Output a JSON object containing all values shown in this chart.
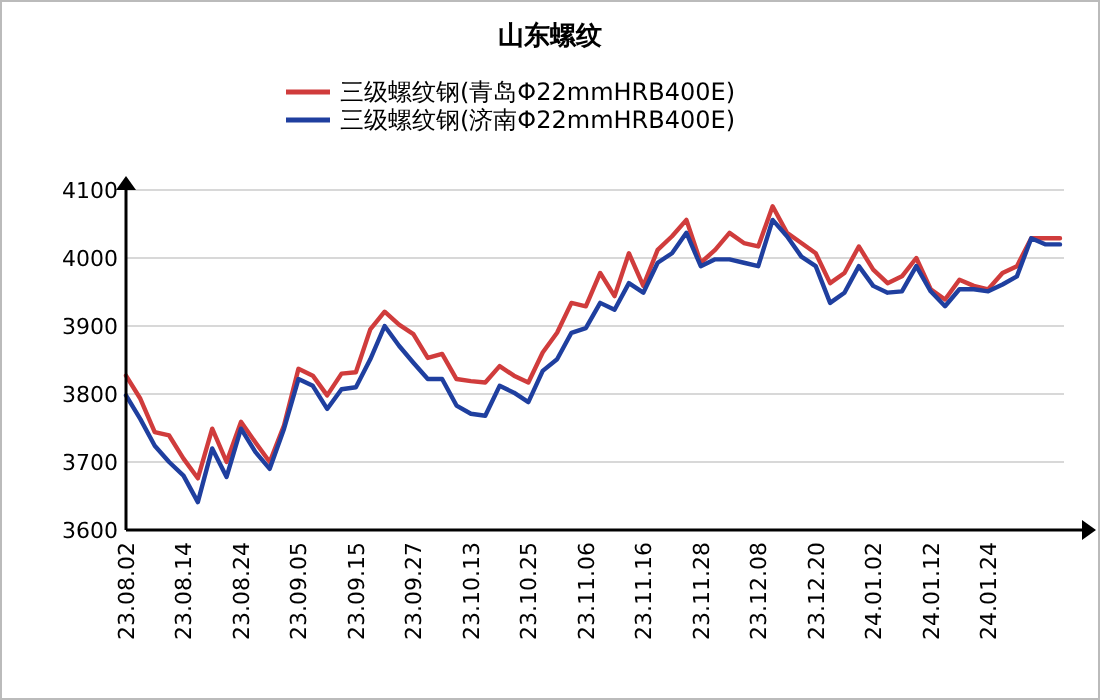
{
  "chart_data": {
    "type": "line",
    "title": "山东螺纹",
    "categories": [
      "23.08.02",
      null,
      null,
      null,
      "23.08.14",
      null,
      null,
      null,
      "23.08.24",
      null,
      null,
      null,
      "23.09.05",
      null,
      null,
      null,
      "23.09.15",
      null,
      null,
      null,
      "23.09.27",
      null,
      null,
      null,
      "23.10.13",
      null,
      null,
      null,
      "23.10.25",
      null,
      null,
      null,
      "23.11.06",
      null,
      null,
      null,
      "23.11.16",
      null,
      null,
      null,
      "23.11.28",
      null,
      null,
      null,
      "23.12.08",
      null,
      null,
      null,
      "23.12.20",
      null,
      null,
      null,
      "24.01.02",
      null,
      null,
      null,
      "24.01.12",
      null,
      null,
      null,
      "24.01.24",
      null,
      null,
      null,
      null,
      null
    ],
    "series": [
      {
        "name": "三级螺纹钢(青岛Φ22mmHRB400E)",
        "color": "#d03c3c",
        "values": [
          3827,
          3793,
          3744,
          3739,
          3705,
          3676,
          3749,
          3700,
          3759,
          3729,
          3700,
          3754,
          3837,
          3827,
          3798,
          3830,
          3832,
          3895,
          3921,
          3902,
          3888,
          3853,
          3859,
          3822,
          3819,
          3817,
          3841,
          3827,
          3817,
          3861,
          3890,
          3934,
          3929,
          3978,
          3944,
          4007,
          3959,
          4012,
          4032,
          4056,
          3993,
          4012,
          4037,
          4022,
          4017,
          4076,
          4037,
          4022,
          4007,
          3963,
          3978,
          4017,
          3983,
          3963,
          3973,
          4000,
          3954,
          3939,
          3968,
          3959,
          3954,
          3978,
          3988,
          4029,
          4029,
          4029
        ]
      },
      {
        "name": "三级螺纹钢(济南Φ22mmHRB400E)",
        "color": "#1f3f9f",
        "values": [
          3798,
          3763,
          3724,
          3700,
          3680,
          3641,
          3720,
          3678,
          3749,
          3715,
          3690,
          3749,
          3822,
          3812,
          3778,
          3807,
          3810,
          3851,
          3900,
          3871,
          3846,
          3822,
          3822,
          3783,
          3771,
          3768,
          3812,
          3802,
          3788,
          3834,
          3851,
          3890,
          3897,
          3934,
          3924,
          3963,
          3949,
          3993,
          4007,
          4037,
          3988,
          3998,
          3998,
          3993,
          3988,
          4056,
          4032,
          4002,
          3988,
          3934,
          3949,
          3988,
          3959,
          3949,
          3951,
          3988,
          3951,
          3929,
          3954,
          3954,
          3951,
          3961,
          3973,
          4029,
          4020,
          4020
        ]
      }
    ],
    "ylim": [
      3600,
      4100
    ],
    "yticks": [
      3600,
      3700,
      3800,
      3900,
      4000,
      4100
    ],
    "grid": "y",
    "legend": "top",
    "marker": "none",
    "line_style": "solid"
  }
}
